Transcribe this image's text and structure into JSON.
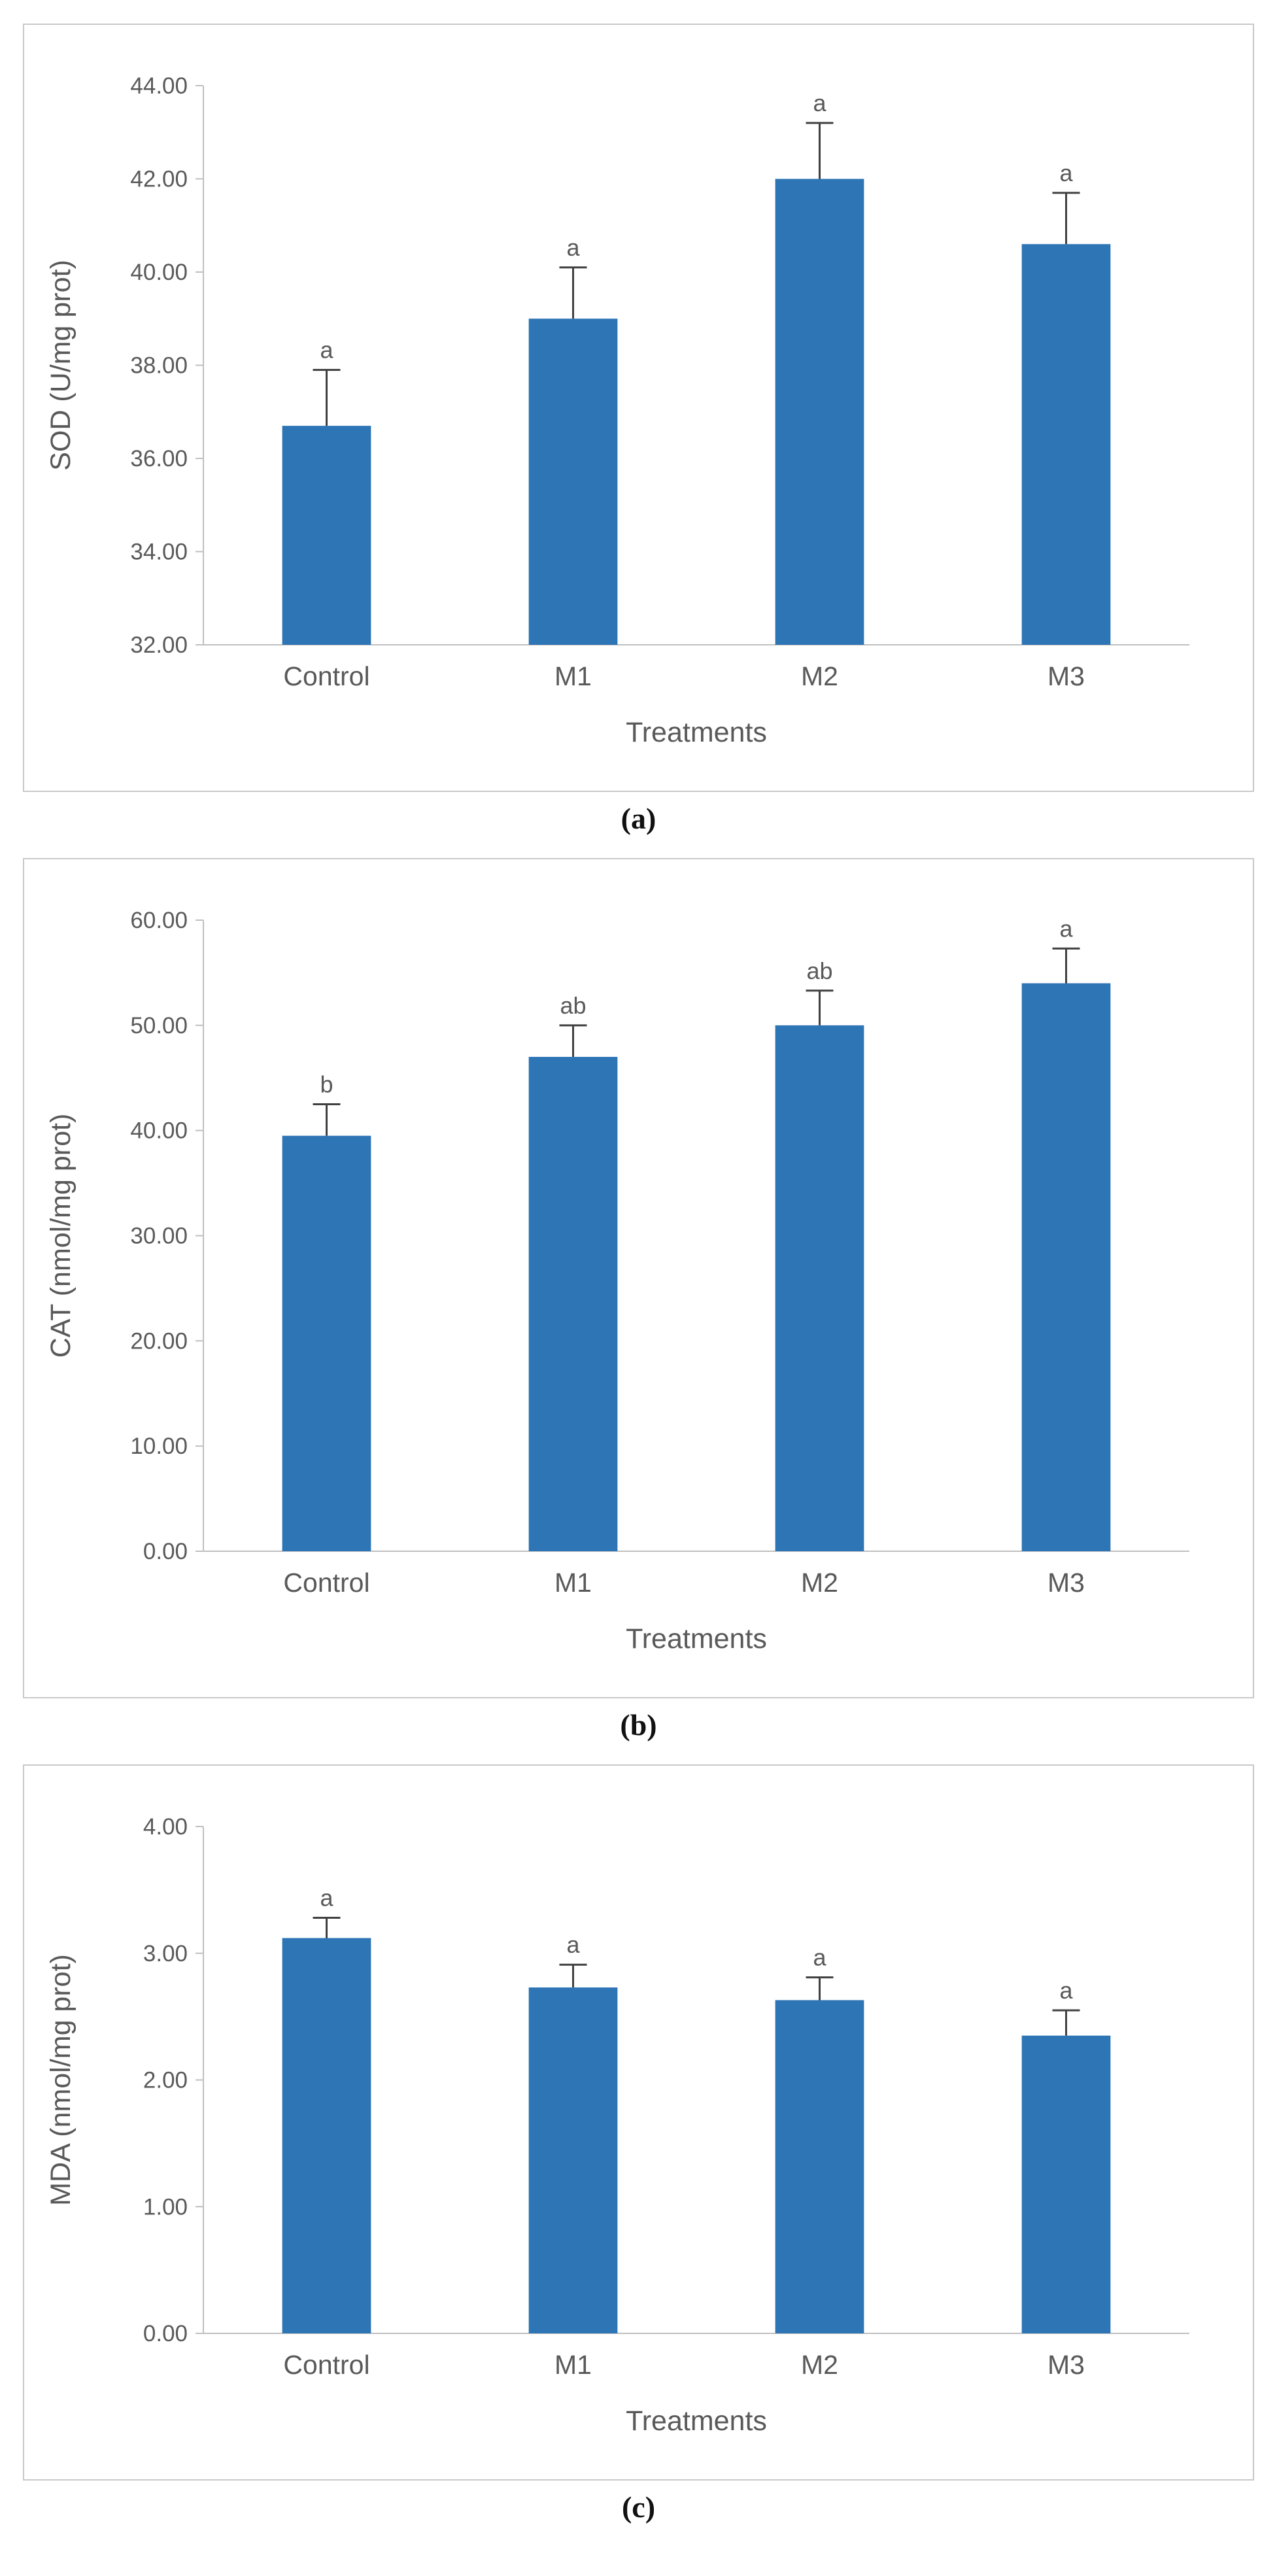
{
  "figure": {
    "panels": [
      {
        "caption": "(a)"
      },
      {
        "caption": "(b)"
      },
      {
        "caption": "(c)"
      }
    ]
  },
  "style": {
    "bar_color": "#2E75B6",
    "error_color": "#404040",
    "axis_color": "#BFBFBF",
    "text_color": "#595959",
    "panel_border": "#C9C9C9"
  },
  "chart_data": [
    {
      "type": "bar",
      "panel": "a",
      "title": "",
      "ylabel": "SOD (U/mg prot)",
      "xlabel": "Treatments",
      "categories": [
        "Control",
        "M1",
        "M2",
        "M3"
      ],
      "values": [
        36.7,
        39.0,
        42.0,
        40.6
      ],
      "errors": [
        1.2,
        1.1,
        1.2,
        1.1
      ],
      "bar_labels": [
        "a",
        "a",
        "a",
        "a"
      ],
      "ylim": [
        32,
        44
      ],
      "ytick_step": 2,
      "ytick_labels": [
        "32.00",
        "34.00",
        "36.00",
        "38.00",
        "40.00",
        "42.00",
        "44.00"
      ],
      "grid": false,
      "legend": "none"
    },
    {
      "type": "bar",
      "panel": "b",
      "title": "",
      "ylabel": "CAT (nmol/mg prot)",
      "xlabel": "Treatments",
      "categories": [
        "Control",
        "M1",
        "M2",
        "M3"
      ],
      "values": [
        39.5,
        47.0,
        50.0,
        54.0
      ],
      "errors": [
        3.0,
        3.0,
        3.3,
        3.3
      ],
      "bar_labels": [
        "b",
        "ab",
        "ab",
        "a"
      ],
      "ylim": [
        0,
        60
      ],
      "ytick_step": 10,
      "ytick_labels": [
        "0.00",
        "10.00",
        "20.00",
        "30.00",
        "40.00",
        "50.00",
        "60.00"
      ],
      "grid": false,
      "legend": "none"
    },
    {
      "type": "bar",
      "panel": "c",
      "title": "",
      "ylabel": "MDA (nmol/mg prot)",
      "xlabel": "Treatments",
      "categories": [
        "Control",
        "M1",
        "M2",
        "M3"
      ],
      "values": [
        3.12,
        2.73,
        2.63,
        2.35
      ],
      "errors": [
        0.16,
        0.18,
        0.18,
        0.2
      ],
      "bar_labels": [
        "a",
        "a",
        "a",
        "a"
      ],
      "ylim": [
        0,
        4
      ],
      "ytick_step": 1,
      "ytick_labels": [
        "0.00",
        "1.00",
        "2.00",
        "3.00",
        "4.00"
      ],
      "grid": false,
      "legend": "none"
    }
  ]
}
